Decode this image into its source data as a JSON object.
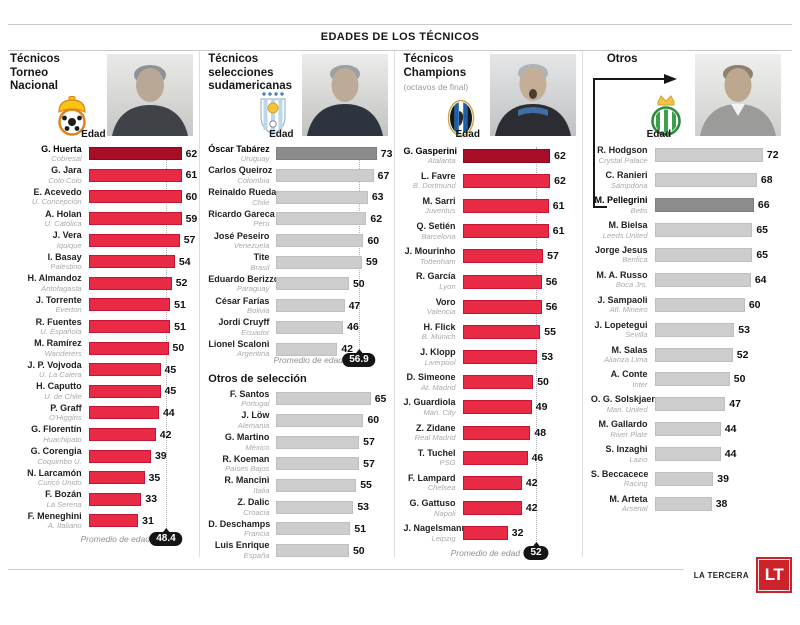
{
  "title": "EDADES DE LOS TÉCNICOS",
  "brand": {
    "name": "LA TERCERA",
    "logo_text": "LT",
    "logo_color": "#cc2229"
  },
  "colors": {
    "red_bar": "#e82a45",
    "red_bar_border": "#c41334",
    "red_highlight": "#a80e28",
    "gray_bar": "#cdcdcd",
    "gray_highlight": "#8c8c8c",
    "badge": "#141414"
  },
  "chart_data": [
    {
      "type": "bar",
      "orientation": "horizontal",
      "title": "Técnicos Torneo Nacional",
      "subtitle": "",
      "xlabel": "Edad",
      "xlim": [
        0,
        68
      ],
      "bar_style": "red",
      "crest": "cobresal-crest",
      "grid": false,
      "legend": false,
      "average": {
        "label": "Promedio de edad",
        "value": "48.4"
      },
      "bars": [
        {
          "label": "G. Huerta",
          "sublabel": "Cobresal",
          "value": 62,
          "highlight": true
        },
        {
          "label": "G. Jara",
          "sublabel": "Colo Colo",
          "value": 61
        },
        {
          "label": "E. Acevedo",
          "sublabel": "U. Concepción",
          "value": 60
        },
        {
          "label": "A. Holan",
          "sublabel": "U. Católica",
          "value": 59
        },
        {
          "label": "J. Vera",
          "sublabel": "Iquique",
          "value": 57
        },
        {
          "label": "I. Basay",
          "sublabel": "Palestino",
          "value": 54
        },
        {
          "label": "H. Almandoz",
          "sublabel": "Antofagasta",
          "value": 52
        },
        {
          "label": "J. Torrente",
          "sublabel": "Everton",
          "value": 51
        },
        {
          "label": "R. Fuentes",
          "sublabel": "U. Española",
          "value": 51
        },
        {
          "label": "M. Ramírez",
          "sublabel": "Wanderers",
          "value": 50
        },
        {
          "label": "J. P. Vojvoda",
          "sublabel": "U. La Calera",
          "value": 45
        },
        {
          "label": "H. Caputto",
          "sublabel": "U. de Chile",
          "value": 45
        },
        {
          "label": "P. Graff",
          "sublabel": "O'Higgins",
          "value": 44
        },
        {
          "label": "G. Florentín",
          "sublabel": "Huachipato",
          "value": 42
        },
        {
          "label": "G. Corengia",
          "sublabel": "Coquimbo U.",
          "value": 39
        },
        {
          "label": "N. Larcamón",
          "sublabel": "Curicó Unido",
          "value": 35
        },
        {
          "label": "F. Bozán",
          "sublabel": "La Serena",
          "value": 33
        },
        {
          "label": "F. Meneghini",
          "sublabel": "A. Italiano",
          "value": 31
        }
      ]
    },
    {
      "type": "bar",
      "orientation": "horizontal",
      "title": "Técnicos selecciones sudamericanas",
      "subtitle": "",
      "xlabel": "Edad",
      "xlim": [
        0,
        80
      ],
      "bar_style": "gray",
      "crest": "uruguay-crest",
      "grid": false,
      "legend": false,
      "average": {
        "label": "Promedio de edad",
        "value": "56.9"
      },
      "bars": [
        {
          "label": "Óscar Tabárez",
          "sublabel": "Uruguay",
          "value": 73,
          "highlight": true
        },
        {
          "label": "Carlos Queiroz",
          "sublabel": "Colombia",
          "value": 67
        },
        {
          "label": "Reinaldo Rueda",
          "sublabel": "Chile",
          "value": 63
        },
        {
          "label": "Ricardo Gareca",
          "sublabel": "Perú",
          "value": 62
        },
        {
          "label": "José Peseiro",
          "sublabel": "Venezuela",
          "value": 60
        },
        {
          "label": "Tite",
          "sublabel": "Brasil",
          "value": 59
        },
        {
          "label": "Eduardo Berizzo",
          "sublabel": "Paraguay",
          "value": 50
        },
        {
          "label": "César Farías",
          "sublabel": "Bolivia",
          "value": 47
        },
        {
          "label": "Jordi Cruyff",
          "sublabel": "Ecuador",
          "value": 46
        },
        {
          "label": "Lionel Scaloni",
          "sublabel": "Argentina",
          "value": 42
        }
      ]
    },
    {
      "type": "bar",
      "orientation": "horizontal",
      "title": "Otros de selección",
      "subtitle": "",
      "xlabel": "Edad",
      "xlim": [
        0,
        80
      ],
      "bar_style": "gray",
      "grid": false,
      "legend": false,
      "bars": [
        {
          "label": "F. Santos",
          "sublabel": "Portugal",
          "value": 65
        },
        {
          "label": "J. Löw",
          "sublabel": "Alemania",
          "value": 60
        },
        {
          "label": "G. Martino",
          "sublabel": "México",
          "value": 57
        },
        {
          "label": "R. Koeman",
          "sublabel": "Países Bajos",
          "value": 57
        },
        {
          "label": "R. Mancini",
          "sublabel": "Italia",
          "value": 55
        },
        {
          "label": "Z. Dalic",
          "sublabel": "Croacia",
          "value": 53
        },
        {
          "label": "D. Deschamps",
          "sublabel": "Francia",
          "value": 51
        },
        {
          "label": "Luis Enrique",
          "sublabel": "España",
          "value": 50
        }
      ]
    },
    {
      "type": "bar",
      "orientation": "horizontal",
      "title": "Técnicos Champions",
      "subtitle": "(octavos de final)",
      "xlabel": "Edad",
      "xlim": [
        0,
        83
      ],
      "bar_style": "red",
      "crest": "atalanta-crest",
      "grid": false,
      "legend": false,
      "average": {
        "label": "Promedio de edad",
        "value": "52"
      },
      "bars": [
        {
          "label": "G. Gasperini",
          "sublabel": "Atalanta",
          "value": 62,
          "highlight": true
        },
        {
          "label": "L. Favre",
          "sublabel": "B. Dortmund",
          "value": 62
        },
        {
          "label": "M. Sarri",
          "sublabel": "Juventus",
          "value": 61
        },
        {
          "label": "Q. Setién",
          "sublabel": "Barcelona",
          "value": 61
        },
        {
          "label": "J. Mourinho",
          "sublabel": "Tottenham",
          "value": 57
        },
        {
          "label": "R. García",
          "sublabel": "Lyon",
          "value": 56
        },
        {
          "label": "Voro",
          "sublabel": "Valencia",
          "value": 56
        },
        {
          "label": "H. Flick",
          "sublabel": "B. Múnich",
          "value": 55
        },
        {
          "label": "J. Klopp",
          "sublabel": "Liverpool",
          "value": 53
        },
        {
          "label": "D. Simeone",
          "sublabel": "At. Madrid",
          "value": 50
        },
        {
          "label": "J. Guardiola",
          "sublabel": "Man. City",
          "value": 49
        },
        {
          "label": "Z. Zidane",
          "sublabel": "Real Madrid",
          "value": 48
        },
        {
          "label": "T. Tuchel",
          "sublabel": "PSG",
          "value": 46
        },
        {
          "label": "F. Lampard",
          "sublabel": "Chelsea",
          "value": 42
        },
        {
          "label": "G. Gattuso",
          "sublabel": "Napoli",
          "value": 42
        },
        {
          "label": "J. Nagelsmann",
          "sublabel": "Leipzig",
          "value": 32
        }
      ]
    },
    {
      "type": "bar",
      "orientation": "horizontal",
      "title": "Otros",
      "subtitle": "",
      "xlabel": "Edad",
      "xlim": [
        0,
        90
      ],
      "bar_style": "gray",
      "crest": "betis-crest",
      "grid": false,
      "legend": false,
      "bars": [
        {
          "label": "R. Hodgson",
          "sublabel": "Crystal Palace",
          "value": 72
        },
        {
          "label": "C. Ranieri",
          "sublabel": "Sampdoria",
          "value": 68
        },
        {
          "label": "M. Pellegrini",
          "sublabel": "Betis",
          "value": 66,
          "highlight": true
        },
        {
          "label": "M. Bielsa",
          "sublabel": "Leeds United",
          "value": 65
        },
        {
          "label": "Jorge Jesus",
          "sublabel": "Benfica",
          "value": 65
        },
        {
          "label": "M. A. Russo",
          "sublabel": "Boca Jrs.",
          "value": 64
        },
        {
          "label": "J. Sampaoli",
          "sublabel": "Atl. Mineiro",
          "value": 60
        },
        {
          "label": "J. Lopetegui",
          "sublabel": "Sevilla",
          "value": 53
        },
        {
          "label": "M. Salas",
          "sublabel": "Alianza Lima",
          "value": 52
        },
        {
          "label": "A. Conte",
          "sublabel": "Inter",
          "value": 50
        },
        {
          "label": "O. G. Solskjaer",
          "sublabel": "Man. United",
          "value": 47
        },
        {
          "label": "M. Gallardo",
          "sublabel": "River Plate",
          "value": 44
        },
        {
          "label": "S. Inzaghi",
          "sublabel": "Lazio",
          "value": 44
        },
        {
          "label": "S. Beccacece",
          "sublabel": "Racing",
          "value": 39
        },
        {
          "label": "M. Arteta",
          "sublabel": "Arsenal",
          "value": 38
        }
      ]
    }
  ]
}
